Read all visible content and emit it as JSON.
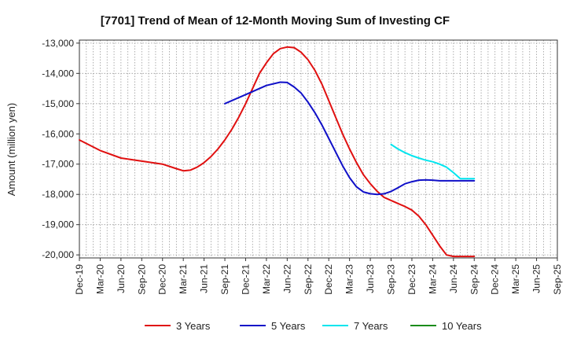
{
  "chart_data": {
    "type": "line",
    "title": "[7701]  Trend of Mean of 12-Month Moving Sum of Investing CF",
    "xlabel": "",
    "ylabel": "Amount (million yen)",
    "ylim": [
      -20100,
      -12900
    ],
    "yticks": [
      -13000,
      -14000,
      -15000,
      -16000,
      -17000,
      -18000,
      -19000,
      -20000
    ],
    "ytick_labels": [
      "-13,000",
      "-14,000",
      "-15,000",
      "-16,000",
      "-17,000",
      "-18,000",
      "-19,000",
      "-20,000"
    ],
    "xlim_months": [
      0,
      69
    ],
    "xticks": [
      0,
      3,
      6,
      9,
      12,
      15,
      18,
      21,
      24,
      27,
      30,
      33,
      36,
      39,
      42,
      45,
      48,
      51,
      54,
      57,
      60,
      63,
      66,
      69
    ],
    "xtick_labels": [
      "Dec-19",
      "Mar-20",
      "Jun-20",
      "Sep-20",
      "Dec-20",
      "Mar-21",
      "Jun-21",
      "Sep-21",
      "Dec-21",
      "Mar-22",
      "Jun-22",
      "Sep-22",
      "Dec-22",
      "Mar-23",
      "Jun-23",
      "Sep-23",
      "Dec-23",
      "Mar-24",
      "Jun-24",
      "Sep-24",
      "Dec-24",
      "Mar-25",
      "Jun-25",
      "Sep-25"
    ],
    "grid": true,
    "legend_position": "bottom",
    "series": [
      {
        "name": "3 Years",
        "color": "#e01010",
        "x": [
          0,
          3,
          6,
          9,
          12,
          14,
          15,
          16,
          17,
          18,
          19,
          20,
          21,
          22,
          23,
          24,
          25,
          26,
          27,
          28,
          29,
          30,
          31,
          32,
          33,
          34,
          35,
          36,
          37,
          38,
          39,
          40,
          41,
          42,
          43,
          44,
          45,
          46,
          47,
          48,
          49,
          50,
          51,
          52,
          53,
          54,
          55,
          56,
          57
        ],
        "y": [
          -16200,
          -16550,
          -16800,
          -16900,
          -17000,
          -17150,
          -17220,
          -17200,
          -17100,
          -16950,
          -16750,
          -16500,
          -16200,
          -15850,
          -15450,
          -15000,
          -14500,
          -14000,
          -13650,
          -13350,
          -13180,
          -13130,
          -13150,
          -13300,
          -13550,
          -13900,
          -14350,
          -14900,
          -15450,
          -16000,
          -16500,
          -16950,
          -17350,
          -17650,
          -17900,
          -18100,
          -18200,
          -18300,
          -18400,
          -18520,
          -18720,
          -19000,
          -19350,
          -19700,
          -20000,
          -20050,
          -20050,
          -20050,
          -20050
        ]
      },
      {
        "name": "5 Years",
        "color": "#1010c8",
        "x": [
          21,
          24,
          27,
          29,
          30,
          31,
          32,
          33,
          34,
          35,
          36,
          37,
          38,
          39,
          40,
          41,
          42,
          43,
          44,
          45,
          46,
          47,
          48,
          49,
          50,
          51,
          52,
          53,
          54,
          55,
          56,
          57
        ],
        "y": [
          -15000,
          -14700,
          -14400,
          -14290,
          -14300,
          -14450,
          -14650,
          -14950,
          -15300,
          -15700,
          -16150,
          -16600,
          -17050,
          -17450,
          -17750,
          -17920,
          -17980,
          -18000,
          -17980,
          -17900,
          -17780,
          -17650,
          -17580,
          -17530,
          -17520,
          -17530,
          -17550,
          -17550,
          -17550,
          -17550,
          -17550,
          -17550
        ]
      },
      {
        "name": "7 Years",
        "color": "#00e5ee",
        "x": [
          45,
          46,
          47,
          48,
          49,
          50,
          51,
          52,
          53,
          54,
          55,
          56,
          57
        ],
        "y": [
          -16350,
          -16500,
          -16620,
          -16720,
          -16800,
          -16870,
          -16920,
          -17000,
          -17100,
          -17280,
          -17480,
          -17480,
          -17480
        ]
      },
      {
        "name": "10 Years",
        "color": "#1a8c1a",
        "x": [],
        "y": []
      }
    ]
  }
}
